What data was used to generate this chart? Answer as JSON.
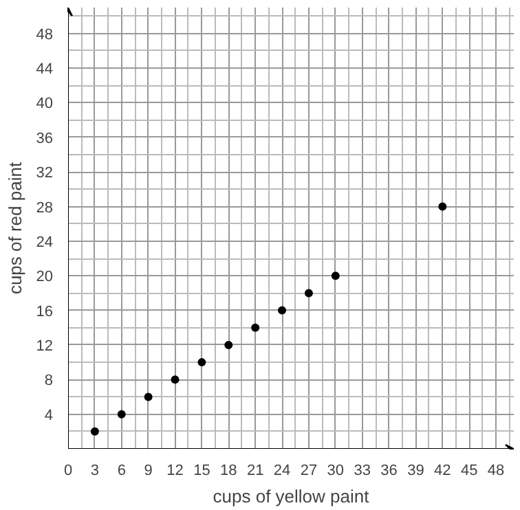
{
  "chart_data": {
    "type": "scatter",
    "xlabel": "cups of yellow paint",
    "ylabel": "cups of red paint",
    "x": [
      3,
      6,
      9,
      12,
      15,
      18,
      21,
      24,
      27,
      30,
      42
    ],
    "values": [
      2,
      4,
      6,
      8,
      10,
      12,
      14,
      16,
      18,
      20,
      28
    ],
    "color": "#000000",
    "marker": "circle",
    "xlim": [
      0,
      50
    ],
    "ylim": [
      0,
      51
    ],
    "xticks": [
      0,
      3,
      6,
      9,
      12,
      15,
      18,
      21,
      24,
      27,
      30,
      33,
      36,
      39,
      42,
      45,
      48
    ],
    "yticks": [
      4,
      8,
      12,
      16,
      20,
      24,
      28,
      32,
      36,
      40,
      44,
      48
    ],
    "grid": true
  }
}
